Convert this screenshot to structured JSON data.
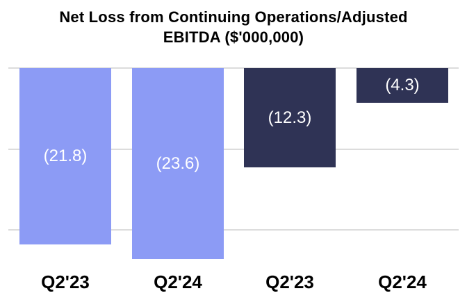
{
  "title": {
    "line1": "Net Loss from Continuing Operations/Adjusted",
    "line2": "EBITDA ($'000,000)"
  },
  "chart_data": {
    "type": "bar",
    "title": "Net Loss from Continuing Operations/Adjusted EBITDA ($'000,000)",
    "unit": "$'000,000",
    "categories": [
      "Q2'23",
      "Q2'24",
      "Q2'23",
      "Q2'24"
    ],
    "bars": [
      {
        "category": "Q2'23",
        "value": -21.8,
        "label": "(21.8)",
        "color": "#8C9BF5",
        "series": "Net Loss from Continuing Operations"
      },
      {
        "category": "Q2'24",
        "value": -23.6,
        "label": "(23.6)",
        "color": "#8C9BF5",
        "series": "Net Loss from Continuing Operations"
      },
      {
        "category": "Q2'23",
        "value": -12.3,
        "label": "(12.3)",
        "color": "#2F3355",
        "series": "Adjusted EBITDA"
      },
      {
        "category": "Q2'24",
        "value": -4.3,
        "label": "(4.3)",
        "color": "#2F3355",
        "series": "Adjusted EBITDA"
      }
    ],
    "series": [
      {
        "name": "Net Loss from Continuing Operations",
        "color": "#8C9BF5",
        "values": [
          -21.8,
          -23.6
        ]
      },
      {
        "name": "Adjusted EBITDA",
        "color": "#2F3355",
        "values": [
          -12.3,
          -4.3
        ]
      }
    ],
    "ylim": [
      -25,
      0
    ],
    "gridlines_at": [
      0,
      -10,
      -20
    ],
    "grid": true,
    "legend": false,
    "xlabel": "",
    "ylabel": ""
  },
  "colors": {
    "background": "#FFFFFF",
    "net_loss_bar": "#8C9BF5",
    "adjusted_ebitda_bar": "#2F3355",
    "gridline": "#DCDCDC",
    "title_text": "#000000",
    "axis_label_text": "#000000",
    "data_label_text": "#FFFFFF"
  }
}
